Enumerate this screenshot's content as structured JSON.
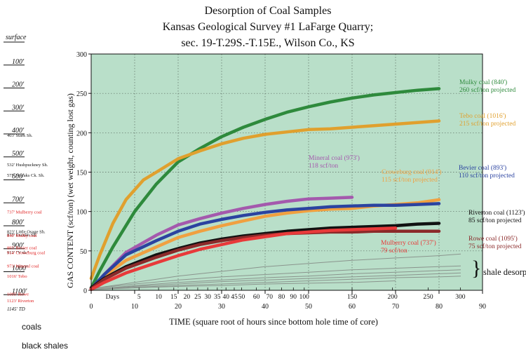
{
  "chart_data": {
    "type": "line",
    "title_lines": [
      "Desorption of Coal Samples",
      "Kansas Geological Survey #1 LaFarge Quarry;",
      "sec. 19-T.29S.-T.15E., Wilson Co., KS"
    ],
    "xlabel": "TIME (square root of hours since bottom hole time of core)",
    "ylabel": "GAS CONTENT (scf/ton) (wet weight, counting lost gas)",
    "x_scale": "sqrt",
    "xlim": [
      0,
      90
    ],
    "ylim": [
      0,
      300
    ],
    "grid": true,
    "background": "#b9dfc9",
    "yticks": [
      0,
      50,
      100,
      150,
      200,
      250,
      300
    ],
    "xticks_major": [
      {
        "v": 0,
        "label": "0"
      },
      {
        "v": 10,
        "label": "10"
      },
      {
        "v": 20,
        "label": "20"
      },
      {
        "v": 30,
        "label": "30"
      },
      {
        "v": 40,
        "label": "40"
      },
      {
        "v": 50,
        "label": "50"
      },
      {
        "v": 60,
        "label": "60"
      },
      {
        "v": 70,
        "label": "70"
      },
      {
        "v": 80,
        "label": "80"
      },
      {
        "v": 90,
        "label": "90"
      }
    ],
    "xticks_days": [
      {
        "v": 4.9,
        "label": "Days"
      },
      {
        "v": 11,
        "label": "5"
      },
      {
        "v": 15.5,
        "label": "10"
      },
      {
        "v": 19,
        "label": "15"
      },
      {
        "v": 22,
        "label": "20"
      },
      {
        "v": 24.5,
        "label": "25"
      },
      {
        "v": 26.8,
        "label": "30"
      },
      {
        "v": 29,
        "label": "35"
      },
      {
        "v": 31,
        "label": "40"
      },
      {
        "v": 32.9,
        "label": "45"
      },
      {
        "v": 34.6,
        "label": "50"
      },
      {
        "v": 38,
        "label": "60"
      },
      {
        "v": 41,
        "label": "70"
      },
      {
        "v": 43.8,
        "label": "80"
      },
      {
        "v": 46.5,
        "label": "90"
      },
      {
        "v": 49,
        "label": "100"
      },
      {
        "v": 60,
        "label": "150"
      },
      {
        "v": 69.3,
        "label": "200"
      },
      {
        "v": 77.5,
        "label": "250"
      },
      {
        "v": 84.9,
        "label": "300"
      }
    ],
    "series": [
      {
        "name": "Mulky coal (840')",
        "note": "260 scf/ton projected",
        "color": "#2e8a3c",
        "x": [
          0,
          2,
          5,
          10,
          15,
          20,
          25,
          30,
          35,
          40,
          45,
          50,
          55,
          60,
          65,
          70,
          75,
          80
        ],
        "y": [
          3,
          25,
          55,
          100,
          135,
          163,
          180,
          195,
          207,
          217,
          226,
          233,
          239,
          244,
          248,
          251,
          254,
          256
        ]
      },
      {
        "name": "Tebo coal (1016')",
        "note": "215 scf/ton projected",
        "color": "#e0a02e",
        "x": [
          0,
          2,
          5,
          8,
          12,
          15,
          20,
          25,
          30,
          35,
          40,
          45,
          50,
          55,
          60,
          65,
          70,
          75,
          80
        ],
        "y": [
          15,
          45,
          85,
          115,
          140,
          150,
          167,
          177,
          186,
          193,
          198,
          201,
          204,
          205,
          207,
          209,
          211,
          213,
          215
        ]
      },
      {
        "name": "Mineral coal (973')",
        "note": "118 scf/ton",
        "color": "#a459ad",
        "x": [
          0,
          3,
          8,
          15,
          20,
          25,
          30,
          35,
          40,
          45,
          50,
          55,
          60
        ],
        "y": [
          2,
          20,
          48,
          70,
          83,
          91,
          98,
          104,
          109,
          113,
          116,
          117,
          118
        ]
      },
      {
        "name": "Croweburg coal (914')",
        "note": "115 scf/ton projected",
        "color": "#f0a040",
        "x": [
          0,
          3,
          8,
          15,
          20,
          25,
          30,
          35,
          40,
          45,
          50,
          55,
          60,
          65,
          70,
          75,
          80
        ],
        "y": [
          2,
          18,
          38,
          55,
          67,
          75,
          82,
          88,
          94,
          98,
          101,
          103,
          104,
          107,
          109,
          111,
          115
        ]
      },
      {
        "name": "Bevier coal (893')",
        "note": "110 scf/ton projected",
        "color": "#2b43a0",
        "x": [
          0,
          3,
          8,
          15,
          20,
          25,
          30,
          35,
          40,
          45,
          50,
          55,
          60,
          65,
          70,
          75,
          80
        ],
        "y": [
          2,
          20,
          45,
          63,
          75,
          84,
          90,
          95,
          99,
          102,
          104,
          106,
          107,
          108,
          108,
          109,
          110
        ]
      },
      {
        "name": "Riverton coal (1123')",
        "note": "85 scf/ton projected",
        "color": "#111111",
        "x": [
          0,
          3,
          8,
          15,
          20,
          25,
          30,
          35,
          40,
          45,
          50,
          55,
          60,
          65,
          70,
          75,
          80
        ],
        "y": [
          3,
          15,
          30,
          45,
          53,
          60,
          65,
          69,
          72,
          75,
          77,
          79,
          80,
          81,
          82,
          84,
          85
        ]
      },
      {
        "name": "Rowe coal (1095')",
        "note": "75 scf/ton projected",
        "color": "#8b2a2a",
        "x": [
          0,
          3,
          8,
          15,
          20,
          25,
          30,
          35,
          40,
          45,
          50,
          55,
          60,
          65,
          70,
          75,
          80
        ],
        "y": [
          2,
          14,
          28,
          42,
          51,
          58,
          63,
          67,
          70,
          72,
          73,
          74,
          74,
          75,
          75,
          75,
          75
        ]
      },
      {
        "name": "Mulberry coal (737')",
        "note": "79 scf/ton",
        "color": "#e83a3a",
        "x": [
          0,
          3,
          8,
          15,
          20,
          25,
          30,
          35,
          40,
          45,
          50,
          55,
          60,
          65,
          70
        ],
        "y": [
          1,
          10,
          22,
          35,
          44,
          52,
          58,
          64,
          68,
          72,
          74,
          76,
          77,
          78,
          79
        ]
      }
    ],
    "shale_series": [
      {
        "x": [
          0,
          10,
          20,
          30,
          40,
          50,
          60,
          70,
          80,
          85
        ],
        "y": [
          2,
          10,
          18,
          24,
          30,
          34,
          38,
          41,
          44,
          46
        ]
      },
      {
        "x": [
          0,
          10,
          20,
          30,
          40,
          50,
          60,
          70,
          80,
          85
        ],
        "y": [
          2,
          8,
          13,
          17,
          20,
          23,
          26,
          28,
          30,
          31
        ]
      },
      {
        "x": [
          0,
          10,
          20,
          30,
          40,
          50,
          60,
          70,
          80,
          85
        ],
        "y": [
          1,
          6,
          10,
          13,
          16,
          18,
          21,
          23,
          25,
          26
        ]
      },
      {
        "x": [
          0,
          10,
          20,
          30,
          40,
          50,
          60,
          70,
          80,
          85
        ],
        "y": [
          1,
          5,
          8,
          11,
          13,
          15,
          17,
          19,
          21,
          22
        ]
      },
      {
        "x": [
          0,
          10,
          20,
          30,
          40,
          50,
          60,
          70,
          80,
          85
        ],
        "y": [
          1,
          4,
          6,
          8,
          10,
          12,
          14,
          16,
          17,
          18
        ]
      },
      {
        "x": [
          0,
          10,
          20,
          30,
          40,
          50,
          60,
          70
        ],
        "y": [
          1,
          3,
          5,
          6,
          8,
          9,
          10,
          12
        ]
      }
    ],
    "shale_label": "shale desorptions",
    "annotation_font_size_hint": "small"
  },
  "column": {
    "surface_label": "surface",
    "depth_ticks": [
      {
        "label": "100'",
        "d": 100
      },
      {
        "label": "200'",
        "d": 200
      },
      {
        "label": "300'",
        "d": 300
      },
      {
        "label": "400'",
        "d": 400
      },
      {
        "label": "500'",
        "d": 500
      },
      {
        "label": "600'",
        "d": 600
      },
      {
        "label": "700'",
        "d": 700
      },
      {
        "label": "800'",
        "d": 800
      },
      {
        "label": "900'",
        "d": 900
      },
      {
        "label": "1000'",
        "d": 1000
      },
      {
        "label": "1100'",
        "d": 1100
      }
    ],
    "units": [
      {
        "label": "403' Stark Sh.",
        "d": 403,
        "kind": "shale"
      },
      {
        "label": "532' Hushpuckney Sh.",
        "d": 532,
        "kind": "shale"
      },
      {
        "label": "577' Noyaks Ck. Sh.",
        "d": 577,
        "kind": "shale"
      },
      {
        "label": "737' Mulberry coal",
        "d": 737,
        "kind": "coal"
      },
      {
        "label": "823' Little Osage Sh.",
        "d": 823,
        "kind": "shale"
      },
      {
        "label": "837' Excello Sh.",
        "d": 837,
        "kind": "shale"
      },
      {
        "label": "840' Mulky coal",
        "d": 840,
        "kind": "coal"
      },
      {
        "label": "893' Bevier coal",
        "d": 893,
        "kind": "coal"
      },
      {
        "label": "913' \"V sh.\"",
        "d": 913,
        "kind": "shale"
      },
      {
        "label": "914' Croweburg coal",
        "d": 914,
        "kind": "coal"
      },
      {
        "label": "973' Mineral coal",
        "d": 973,
        "kind": "coal"
      },
      {
        "label": "1016' Tebo",
        "d": 1016,
        "kind": "coal"
      },
      {
        "label": "1095' Rowe",
        "d": 1095,
        "kind": "coal"
      },
      {
        "label": "1123' Riverton",
        "d": 1123,
        "kind": "coal"
      }
    ],
    "td_label": "1145' TD",
    "legend": [
      {
        "label": "coals"
      },
      {
        "label": "black shales"
      }
    ],
    "coal_color": "#e02020",
    "shale_color": "#111111"
  }
}
